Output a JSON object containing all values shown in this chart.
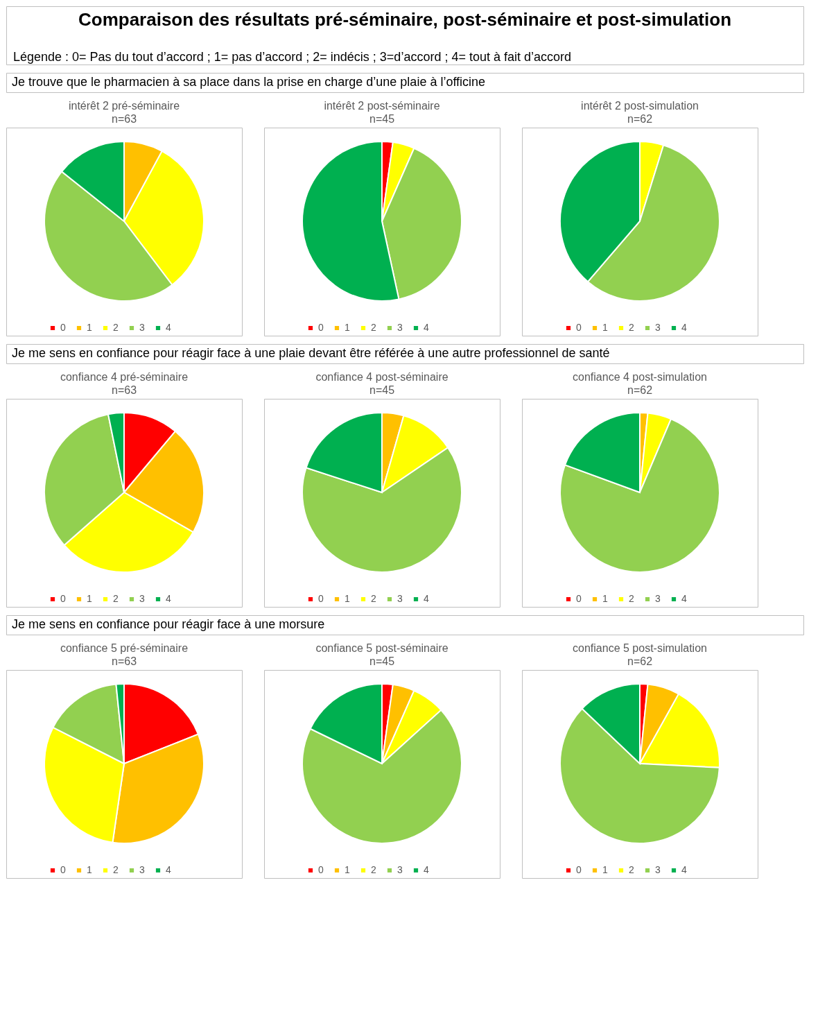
{
  "chart_data": [
    {
      "type": "other",
      "title": "Comparaison des résultats pré-séminaire, post-séminaire et post-simulation",
      "annotations": [
        "Légende : 0= Pas du tout d’accord ; 1= pas d’accord ; 2= indécis ; 3=d’accord ; 4= tout à fait d’accord"
      ]
    },
    {
      "type": "other",
      "title": "Je trouve que le pharmacien à sa place dans la prise en charge d’une plaie à l’officine"
    },
    {
      "type": "pie",
      "title": "intérêt 2 pré-séminaire",
      "subtitle": "n=63",
      "categories": [
        "0",
        "1",
        "2",
        "3",
        "4"
      ],
      "values": [
        0,
        7.9,
        31.8,
        46.0,
        14.3
      ],
      "colors": [
        "#ff0000",
        "#ffc000",
        "#ffff00",
        "#92d050",
        "#00b050"
      ],
      "legend": "bottom"
    },
    {
      "type": "pie",
      "title": "intérêt 2 post-séminaire",
      "subtitle": "n=45",
      "categories": [
        "0",
        "1",
        "2",
        "3",
        "4"
      ],
      "values": [
        2.2,
        0,
        4.4,
        40.0,
        53.4
      ],
      "colors": [
        "#ff0000",
        "#ffc000",
        "#ffff00",
        "#92d050",
        "#00b050"
      ],
      "legend": "bottom"
    },
    {
      "type": "pie",
      "title": "intérêt 2 post-simulation",
      "subtitle": "n=62",
      "categories": [
        "0",
        "1",
        "2",
        "3",
        "4"
      ],
      "values": [
        0,
        0,
        4.8,
        56.5,
        38.7
      ],
      "colors": [
        "#ff0000",
        "#ffc000",
        "#ffff00",
        "#92d050",
        "#00b050"
      ],
      "legend": "bottom"
    },
    {
      "type": "other",
      "title": "Je me sens en confiance pour réagir face à une plaie devant être référée à une autre professionnel de santé"
    },
    {
      "type": "pie",
      "title": "confiance 4 pré-séminaire",
      "subtitle": "n=63",
      "categories": [
        "0",
        "1",
        "2",
        "3",
        "4"
      ],
      "values": [
        11.1,
        22.2,
        30.2,
        33.3,
        3.2
      ],
      "colors": [
        "#ff0000",
        "#ffc000",
        "#ffff00",
        "#92d050",
        "#00b050"
      ],
      "legend": "bottom"
    },
    {
      "type": "pie",
      "title": "confiance 4 post-séminaire",
      "subtitle": "n=45",
      "categories": [
        "0",
        "1",
        "2",
        "3",
        "4"
      ],
      "values": [
        0,
        4.4,
        11.1,
        64.5,
        20.0
      ],
      "colors": [
        "#ff0000",
        "#ffc000",
        "#ffff00",
        "#92d050",
        "#00b050"
      ],
      "legend": "bottom"
    },
    {
      "type": "pie",
      "title": "confiance 4 post-simulation",
      "subtitle": "n=62",
      "categories": [
        "0",
        "1",
        "2",
        "3",
        "4"
      ],
      "values": [
        0,
        1.6,
        4.8,
        74.2,
        19.4
      ],
      "colors": [
        "#ff0000",
        "#ffc000",
        "#ffff00",
        "#92d050",
        "#00b050"
      ],
      "legend": "bottom"
    },
    {
      "type": "other",
      "title": "Je me sens en confiance pour réagir face à une morsure"
    },
    {
      "type": "pie",
      "title": "confiance 5 pré-séminaire",
      "subtitle": "n=63",
      "categories": [
        "0",
        "1",
        "2",
        "3",
        "4"
      ],
      "values": [
        19.0,
        33.3,
        30.2,
        15.9,
        1.6
      ],
      "colors": [
        "#ff0000",
        "#ffc000",
        "#ffff00",
        "#92d050",
        "#00b050"
      ],
      "legend": "bottom"
    },
    {
      "type": "pie",
      "title": "confiance 5 post-séminaire",
      "subtitle": "n=45",
      "categories": [
        "0",
        "1",
        "2",
        "3",
        "4"
      ],
      "values": [
        2.2,
        4.4,
        6.7,
        68.9,
        17.8
      ],
      "colors": [
        "#ff0000",
        "#ffc000",
        "#ffff00",
        "#92d050",
        "#00b050"
      ],
      "legend": "bottom"
    },
    {
      "type": "pie",
      "title": "confiance 5 post-simulation",
      "subtitle": "n=62",
      "categories": [
        "0",
        "1",
        "2",
        "3",
        "4"
      ],
      "values": [
        1.6,
        6.5,
        17.7,
        61.3,
        12.9
      ],
      "colors": [
        "#ff0000",
        "#ffc000",
        "#ffff00",
        "#92d050",
        "#00b050"
      ],
      "legend": "bottom"
    }
  ]
}
